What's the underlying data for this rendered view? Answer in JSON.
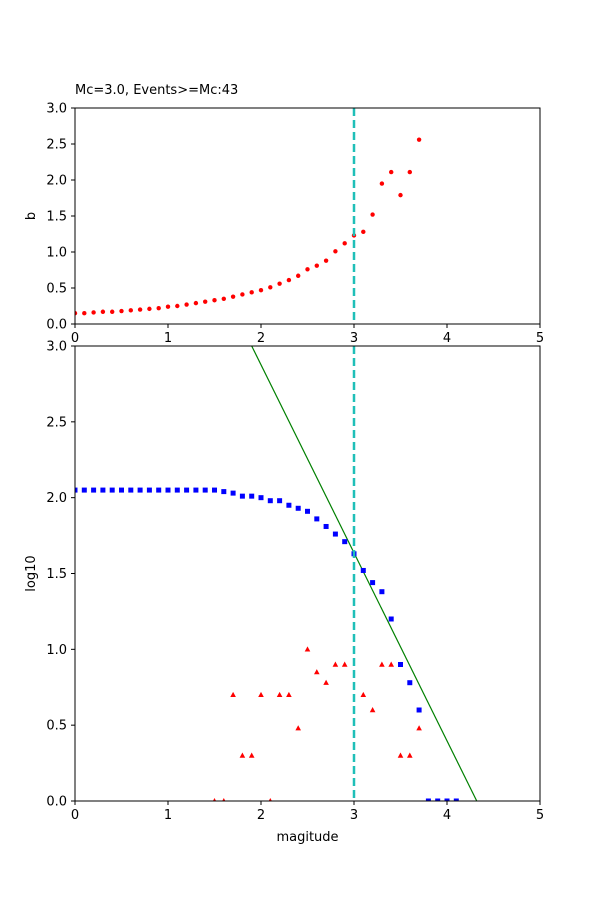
{
  "chart_data": [
    {
      "type": "scatter",
      "title": "Mc=3.0, Events>=Mc:43",
      "xlabel": "",
      "ylabel": "b",
      "xlim": [
        0,
        5
      ],
      "ylim": [
        0,
        3
      ],
      "xticks": [
        "0",
        "1",
        "2",
        "3",
        "4",
        "5"
      ],
      "yticks": [
        "0.0",
        "0.5",
        "1.0",
        "1.5",
        "2.0",
        "2.5",
        "3.0"
      ],
      "grid": false,
      "colors": {
        "points": "#ff0000",
        "mc_line": "#1fbfb8"
      },
      "mc": 3.0,
      "series": [
        {
          "marker": "circle",
          "x": [
            0.0,
            0.1,
            0.2,
            0.3,
            0.4,
            0.5,
            0.6,
            0.7,
            0.8,
            0.9,
            1.0,
            1.1,
            1.2,
            1.3,
            1.4,
            1.5,
            1.6,
            1.7,
            1.8,
            1.9,
            2.0,
            2.1,
            2.2,
            2.3,
            2.4,
            2.5,
            2.6,
            2.7,
            2.8,
            2.9,
            3.0,
            3.1,
            3.2,
            3.3,
            3.4,
            3.5,
            3.6,
            3.7
          ],
          "y": [
            0.15,
            0.15,
            0.16,
            0.17,
            0.17,
            0.18,
            0.19,
            0.2,
            0.21,
            0.22,
            0.24,
            0.25,
            0.27,
            0.29,
            0.31,
            0.33,
            0.35,
            0.38,
            0.41,
            0.44,
            0.47,
            0.51,
            0.56,
            0.61,
            0.67,
            0.76,
            0.81,
            0.88,
            1.01,
            1.12,
            1.23,
            1.28,
            1.52,
            1.95,
            2.11,
            1.79,
            2.11,
            2.56
          ]
        }
      ]
    },
    {
      "type": "scatter",
      "title": "",
      "xlabel": "magitude",
      "ylabel": "log10",
      "xlim": [
        0,
        5
      ],
      "ylim": [
        0,
        3
      ],
      "xticks": [
        "0",
        "1",
        "2",
        "3",
        "4",
        "5"
      ],
      "yticks": [
        "0.0",
        "0.5",
        "1.0",
        "1.5",
        "2.0",
        "2.5",
        "3.0"
      ],
      "grid": false,
      "colors": {
        "cumulative": "#0000ff",
        "noncumulative": "#ff0000",
        "fit_line": "#008000",
        "mc_line": "#1fbfb8"
      },
      "mc": 3.0,
      "fit_line": {
        "x": [
          1.9,
          4.32
        ],
        "y": [
          3.0,
          0.0
        ]
      },
      "series": [
        {
          "marker": "square",
          "x": [
            0.0,
            0.1,
            0.2,
            0.3,
            0.4,
            0.5,
            0.6,
            0.7,
            0.8,
            0.9,
            1.0,
            1.1,
            1.2,
            1.3,
            1.4,
            1.5,
            1.6,
            1.7,
            1.8,
            1.9,
            2.0,
            2.1,
            2.2,
            2.3,
            2.4,
            2.5,
            2.6,
            2.7,
            2.8,
            2.9,
            3.0,
            3.1,
            3.2,
            3.3,
            3.4,
            3.5,
            3.6,
            3.7,
            3.8,
            3.9,
            4.0,
            4.1
          ],
          "y": [
            2.05,
            2.05,
            2.05,
            2.05,
            2.05,
            2.05,
            2.05,
            2.05,
            2.05,
            2.05,
            2.05,
            2.05,
            2.05,
            2.05,
            2.05,
            2.05,
            2.04,
            2.03,
            2.01,
            2.01,
            2.0,
            1.98,
            1.98,
            1.95,
            1.93,
            1.91,
            1.86,
            1.81,
            1.76,
            1.71,
            1.63,
            1.52,
            1.44,
            1.38,
            1.2,
            0.9,
            0.78,
            0.6,
            0.0,
            0.0,
            0.0,
            0.0
          ]
        },
        {
          "marker": "triangle",
          "x": [
            1.5,
            1.6,
            1.7,
            1.8,
            1.9,
            2.0,
            2.1,
            2.2,
            2.3,
            2.4,
            2.5,
            2.6,
            2.7,
            2.8,
            2.9,
            3.1,
            3.2,
            3.3,
            3.4,
            3.5,
            3.6,
            3.7
          ],
          "y": [
            0.0,
            0.0,
            0.7,
            0.3,
            0.3,
            0.7,
            0.0,
            0.7,
            0.7,
            0.48,
            1.0,
            0.85,
            0.78,
            0.9,
            0.9,
            0.7,
            0.6,
            0.9,
            0.9,
            0.3,
            0.3,
            0.48
          ]
        }
      ]
    }
  ]
}
